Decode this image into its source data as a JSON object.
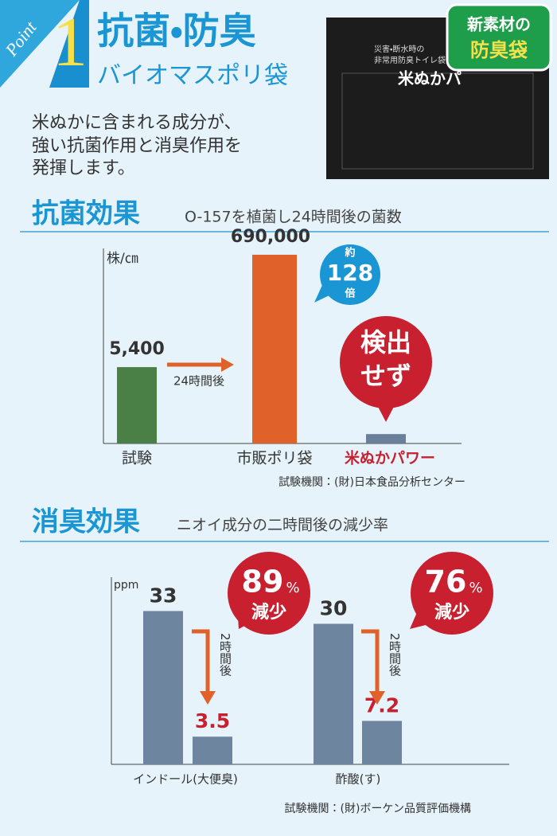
{
  "header": {
    "badge": "Point",
    "number": "1",
    "title": "抗菌・防臭",
    "subtitle": "バイオマスポリ袋"
  },
  "description": [
    "米ぬかに含まれる成分が、",
    "強い抗菌作用と消臭作用を",
    "発揮します。"
  ],
  "product": {
    "badge": [
      "新素材の",
      "防臭袋"
    ],
    "tagline": "災害・断水時の",
    "name": "非常用防臭トイレ袋",
    "brand": "米ぬかパ"
  },
  "sections": [
    {
      "title": "抗菌効果",
      "subtitle": "O-157を植菌し24時間後の菌数"
    },
    {
      "title": "消臭効果",
      "subtitle": "ニオイ成分の二時間後の減少率"
    }
  ],
  "chart_data": [
    {
      "type": "bar",
      "ylabel": "株/㎝",
      "log": true,
      "categories": [
        "試験",
        "市販ポリ袋",
        "米ぬかパワー"
      ],
      "values": [
        5400,
        690000,
        300
      ],
      "value_labels": [
        "5,400",
        "690,000",
        null
      ],
      "colors": [
        "#4a7f45",
        "#e0622a",
        "#6a7f99"
      ],
      "ylim": [
        200,
        2000000
      ],
      "annotations": {
        "arrow": "24時間後",
        "ratio": [
          "約",
          "128",
          "倍"
        ],
        "result": [
          "検出",
          "せず"
        ]
      },
      "source": "試験機関：(財)日本食品分析センター"
    },
    {
      "type": "grouped-bar",
      "ylabel": "ppm",
      "categories": [
        "インドール(大便臭)",
        "酢酸(す)"
      ],
      "series": [
        {
          "color": "#6e85a0",
          "values": [
            33,
            30
          ]
        },
        {
          "color": "#6e85a0",
          "values": [
            3.5,
            7.2
          ]
        }
      ],
      "value_colors": [
        "#333333",
        "#c8202f"
      ],
      "ylim": [
        -3,
        40
      ],
      "annotations": {
        "arrow": "2時間後",
        "reductions": [
          {
            "number": "89",
            "unit": "%",
            "text": "減少"
          },
          {
            "number": "76",
            "unit": "%",
            "text": "減少"
          }
        ]
      },
      "source": "試験機関：(財)ボーケン品質評価機構"
    }
  ]
}
